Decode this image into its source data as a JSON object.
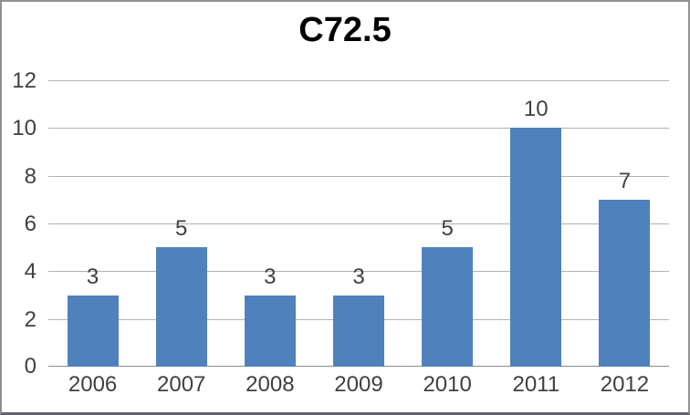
{
  "chart_data": {
    "type": "bar",
    "title": "C72.5",
    "categories": [
      "2006",
      "2007",
      "2008",
      "2009",
      "2010",
      "2011",
      "2012"
    ],
    "values": [
      3,
      5,
      3,
      3,
      5,
      10,
      7
    ],
    "xlabel": "",
    "ylabel": "",
    "ylim": [
      0,
      12
    ],
    "yticks": [
      0,
      2,
      4,
      6,
      8,
      10,
      12
    ],
    "grid": true,
    "legend_position": "none",
    "data_labels": [
      3,
      5,
      3,
      3,
      5,
      10,
      7
    ]
  },
  "colors": {
    "bar": "#4f81bd",
    "gridline": "#b3b3b3",
    "axis_line": "#8c8c8c",
    "label_text": "#404040",
    "title_text": "#000000",
    "frame_border": "#919191",
    "frame_border_bottom": "#62646c",
    "background": "#ffffff"
  }
}
